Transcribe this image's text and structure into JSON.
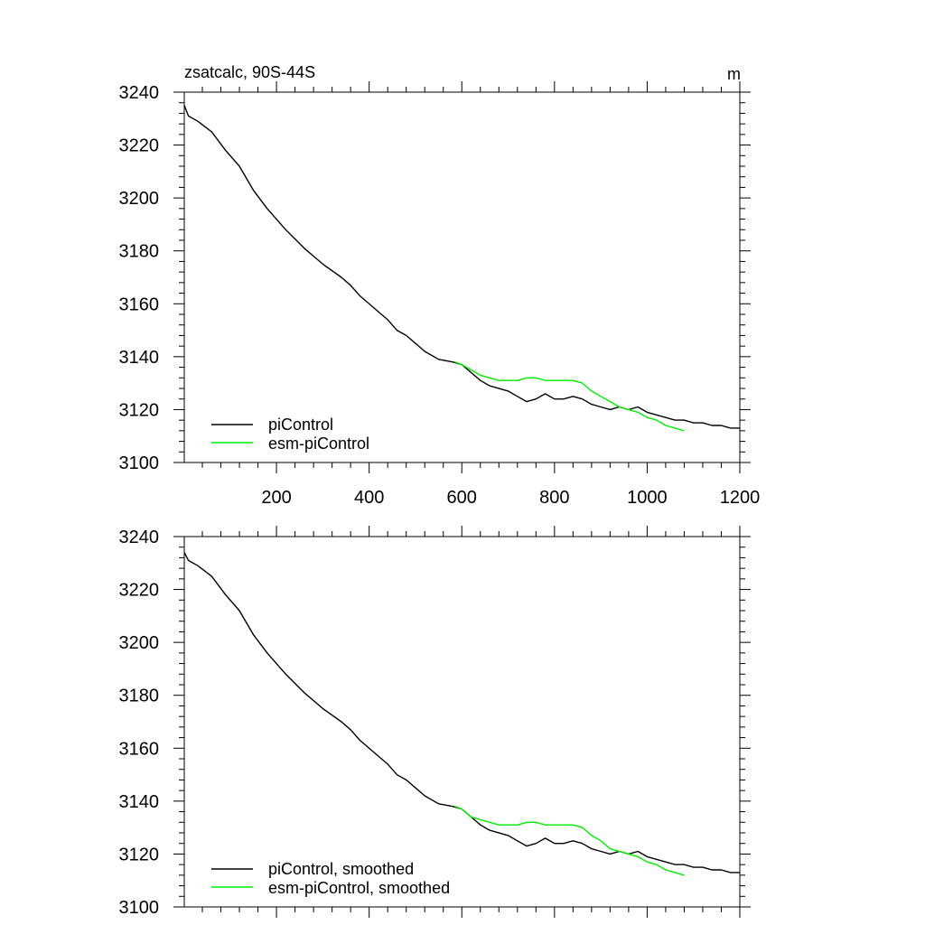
{
  "chart_data": [
    {
      "type": "line",
      "title": "zsatcalc, 90S-44S",
      "units": "m",
      "xlim": [
        1,
        1200
      ],
      "ylim": [
        3100,
        3240
      ],
      "xticks": [
        200,
        400,
        600,
        800,
        1000,
        1200
      ],
      "xtick_labels": [
        "200",
        "400",
        "600",
        "800",
        "1000",
        "1200"
      ],
      "yticks": [
        3100,
        3120,
        3140,
        3160,
        3180,
        3200,
        3220,
        3240
      ],
      "ytick_labels": [
        "3100",
        "3120",
        "3140",
        "3160",
        "3180",
        "3200",
        "3220",
        "3240"
      ],
      "legend_position": "bottom-left",
      "series": [
        {
          "name": "piControl",
          "color": "#000000",
          "points": [
            [
              1,
              3235
            ],
            [
              10,
              3231
            ],
            [
              30,
              3229
            ],
            [
              60,
              3225
            ],
            [
              90,
              3218
            ],
            [
              120,
              3212
            ],
            [
              150,
              3203
            ],
            [
              180,
              3196
            ],
            [
              220,
              3188
            ],
            [
              260,
              3181
            ],
            [
              280,
              3178
            ],
            [
              300,
              3175
            ],
            [
              340,
              3170
            ],
            [
              360,
              3167
            ],
            [
              380,
              3163
            ],
            [
              420,
              3157
            ],
            [
              440,
              3154
            ],
            [
              460,
              3150
            ],
            [
              480,
              3148
            ],
            [
              500,
              3145
            ],
            [
              520,
              3142
            ],
            [
              550,
              3139
            ],
            [
              580,
              3138
            ],
            [
              600,
              3137
            ],
            [
              620,
              3134
            ],
            [
              640,
              3131
            ],
            [
              660,
              3129
            ],
            [
              700,
              3127
            ],
            [
              720,
              3125
            ],
            [
              740,
              3123
            ],
            [
              760,
              3124
            ],
            [
              780,
              3126
            ],
            [
              800,
              3124
            ],
            [
              820,
              3124
            ],
            [
              840,
              3125
            ],
            [
              860,
              3124
            ],
            [
              880,
              3122
            ],
            [
              900,
              3121
            ],
            [
              920,
              3120
            ],
            [
              940,
              3121
            ],
            [
              960,
              3120
            ],
            [
              980,
              3121
            ],
            [
              1000,
              3119
            ],
            [
              1020,
              3118
            ],
            [
              1040,
              3117
            ],
            [
              1060,
              3116
            ],
            [
              1080,
              3116
            ],
            [
              1100,
              3115
            ],
            [
              1120,
              3115
            ],
            [
              1140,
              3114
            ],
            [
              1160,
              3114
            ],
            [
              1180,
              3113
            ],
            [
              1200,
              3113
            ]
          ]
        },
        {
          "name": "esm-piControl",
          "color": "#00ee00",
          "points": [
            [
              585,
              3138
            ],
            [
              600,
              3137
            ],
            [
              620,
              3135
            ],
            [
              640,
              3133
            ],
            [
              660,
              3132
            ],
            [
              680,
              3131
            ],
            [
              700,
              3131
            ],
            [
              720,
              3131
            ],
            [
              740,
              3132
            ],
            [
              760,
              3132
            ],
            [
              780,
              3131
            ],
            [
              800,
              3131
            ],
            [
              820,
              3131
            ],
            [
              840,
              3131
            ],
            [
              860,
              3130
            ],
            [
              880,
              3127
            ],
            [
              900,
              3125
            ],
            [
              920,
              3123
            ],
            [
              940,
              3121
            ],
            [
              960,
              3120
            ],
            [
              980,
              3119
            ],
            [
              1000,
              3117
            ],
            [
              1020,
              3116
            ],
            [
              1040,
              3114
            ],
            [
              1060,
              3113
            ],
            [
              1080,
              3112
            ]
          ]
        }
      ]
    },
    {
      "type": "line",
      "title": "",
      "xlim": [
        1,
        1200
      ],
      "ylim": [
        3100,
        3240
      ],
      "xticks": [
        200,
        400,
        600,
        800,
        1000,
        1200
      ],
      "yticks": [
        3100,
        3120,
        3140,
        3160,
        3180,
        3200,
        3220,
        3240
      ],
      "ytick_labels": [
        "3100",
        "3120",
        "3140",
        "3160",
        "3180",
        "3200",
        "3220",
        "3240"
      ],
      "legend_position": "bottom-left",
      "series": [
        {
          "name": "piControl, smoothed",
          "color": "#000000",
          "points": [
            [
              1,
              3234
            ],
            [
              10,
              3231
            ],
            [
              30,
              3229
            ],
            [
              60,
              3225
            ],
            [
              90,
              3218
            ],
            [
              120,
              3212
            ],
            [
              150,
              3203
            ],
            [
              180,
              3196
            ],
            [
              220,
              3188
            ],
            [
              260,
              3181
            ],
            [
              280,
              3178
            ],
            [
              300,
              3175
            ],
            [
              340,
              3170
            ],
            [
              360,
              3167
            ],
            [
              380,
              3163
            ],
            [
              420,
              3157
            ],
            [
              440,
              3154
            ],
            [
              460,
              3150
            ],
            [
              480,
              3148
            ],
            [
              500,
              3145
            ],
            [
              520,
              3142
            ],
            [
              550,
              3139
            ],
            [
              580,
              3138
            ],
            [
              600,
              3137
            ],
            [
              620,
              3134
            ],
            [
              640,
              3131
            ],
            [
              660,
              3129
            ],
            [
              700,
              3127
            ],
            [
              720,
              3125
            ],
            [
              740,
              3123
            ],
            [
              760,
              3124
            ],
            [
              780,
              3126
            ],
            [
              800,
              3124
            ],
            [
              820,
              3124
            ],
            [
              840,
              3125
            ],
            [
              860,
              3124
            ],
            [
              880,
              3122
            ],
            [
              900,
              3121
            ],
            [
              920,
              3120
            ],
            [
              940,
              3121
            ],
            [
              960,
              3120
            ],
            [
              980,
              3121
            ],
            [
              1000,
              3119
            ],
            [
              1020,
              3118
            ],
            [
              1040,
              3117
            ],
            [
              1060,
              3116
            ],
            [
              1080,
              3116
            ],
            [
              1100,
              3115
            ],
            [
              1120,
              3115
            ],
            [
              1140,
              3114
            ],
            [
              1160,
              3114
            ],
            [
              1180,
              3113
            ],
            [
              1200,
              3113
            ]
          ]
        },
        {
          "name": "esm-piControl, smoothed",
          "color": "#00ee00",
          "points": [
            [
              585,
              3138
            ],
            [
              600,
              3137
            ],
            [
              620,
              3134
            ],
            [
              640,
              3133
            ],
            [
              660,
              3132
            ],
            [
              680,
              3131
            ],
            [
              700,
              3131
            ],
            [
              720,
              3131
            ],
            [
              740,
              3132
            ],
            [
              760,
              3132
            ],
            [
              780,
              3131
            ],
            [
              800,
              3131
            ],
            [
              820,
              3131
            ],
            [
              840,
              3131
            ],
            [
              860,
              3130
            ],
            [
              880,
              3127
            ],
            [
              900,
              3125
            ],
            [
              920,
              3122
            ],
            [
              940,
              3121
            ],
            [
              960,
              3120
            ],
            [
              980,
              3119
            ],
            [
              1000,
              3117
            ],
            [
              1020,
              3116
            ],
            [
              1040,
              3114
            ],
            [
              1060,
              3113
            ],
            [
              1080,
              3112
            ]
          ]
        }
      ]
    }
  ]
}
